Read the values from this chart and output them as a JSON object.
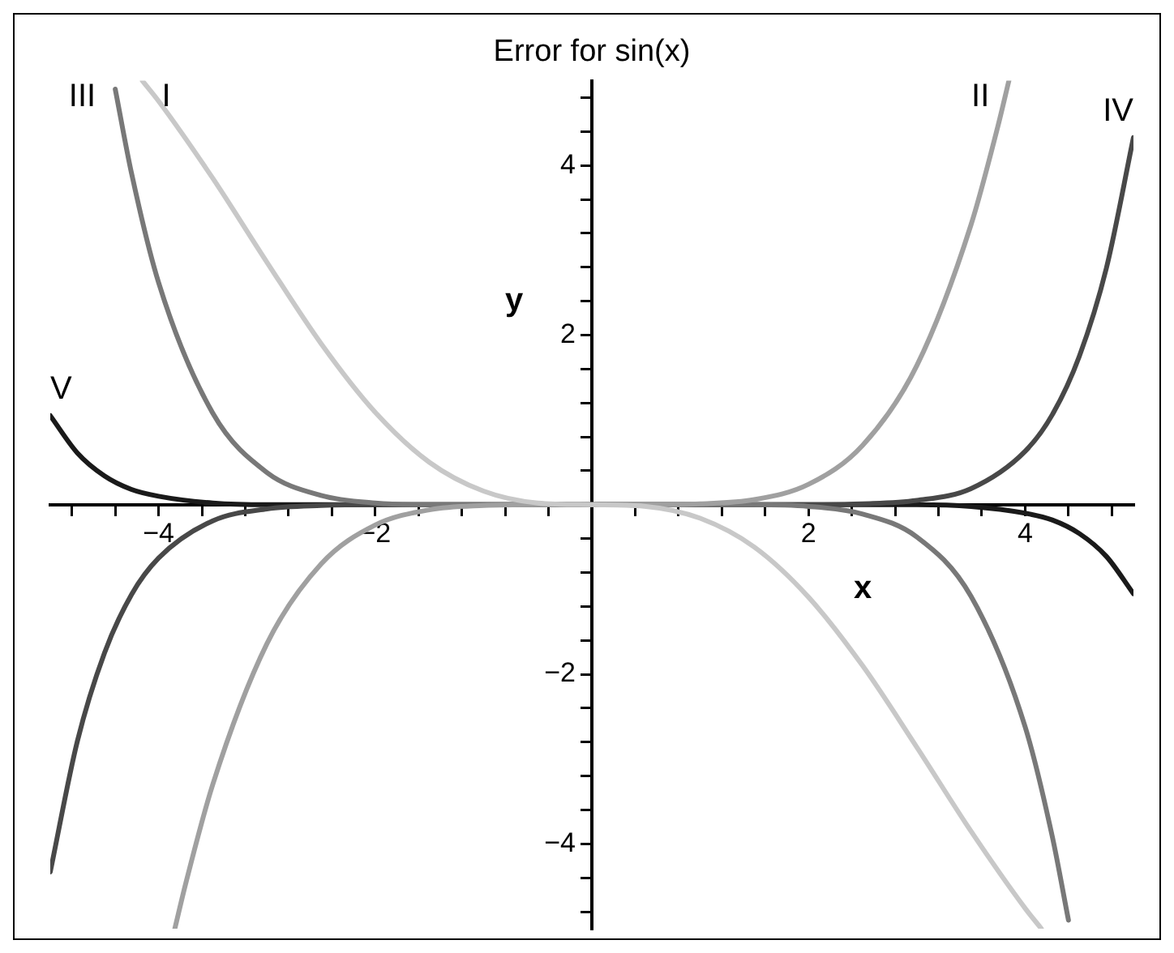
{
  "chart_data": {
    "type": "line",
    "title": "Error for sin(x)",
    "xlabel": "x",
    "ylabel": "y",
    "xlim": [
      -5,
      5
    ],
    "ylim": [
      -5,
      5
    ],
    "xticks": [
      {
        "value": -4.8,
        "label": null
      },
      {
        "value": -4.4,
        "label": null
      },
      {
        "value": -4,
        "label": "−4"
      },
      {
        "value": -3.6,
        "label": null
      },
      {
        "value": -3.2,
        "label": null
      },
      {
        "value": -2.8,
        "label": null
      },
      {
        "value": -2.4,
        "label": null
      },
      {
        "value": -2,
        "label": "−2"
      },
      {
        "value": -1.6,
        "label": null
      },
      {
        "value": -1.2,
        "label": null
      },
      {
        "value": -0.8,
        "label": null
      },
      {
        "value": -0.4,
        "label": null
      },
      {
        "value": 0.4,
        "label": null
      },
      {
        "value": 0.8,
        "label": null
      },
      {
        "value": 1.2,
        "label": null
      },
      {
        "value": 1.6,
        "label": null
      },
      2,
      {
        "value": 2.4,
        "label": null
      },
      {
        "value": 2.8,
        "label": null
      },
      {
        "value": 3.2,
        "label": null
      },
      {
        "value": 3.6,
        "label": null
      },
      4,
      {
        "value": 4.4,
        "label": null
      },
      {
        "value": 4.8,
        "label": null
      }
    ],
    "yticks": [
      {
        "value": -4.8,
        "label": null
      },
      {
        "value": -4.4,
        "label": null
      },
      {
        "value": -4,
        "label": "−4"
      },
      {
        "value": -3.6,
        "label": null
      },
      {
        "value": -3.2,
        "label": null
      },
      {
        "value": -2.8,
        "label": null
      },
      {
        "value": -2.4,
        "label": null
      },
      {
        "value": -2,
        "label": "−2"
      },
      {
        "value": -1.6,
        "label": null
      },
      {
        "value": -1.2,
        "label": null
      },
      {
        "value": -0.8,
        "label": null
      },
      {
        "value": -0.4,
        "label": null
      },
      {
        "value": 0.4,
        "label": null
      },
      {
        "value": 0.8,
        "label": null
      },
      {
        "value": 1.2,
        "label": null
      },
      {
        "value": 1.6,
        "label": null
      },
      2,
      {
        "value": 2.4,
        "label": null
      },
      {
        "value": 2.8,
        "label": null
      },
      {
        "value": 3.2,
        "label": null
      },
      {
        "value": 3.6,
        "label": null
      },
      4,
      {
        "value": 4.4,
        "label": null
      },
      {
        "value": 4.8,
        "label": null
      }
    ],
    "marker": "none",
    "series": [
      {
        "name": "I",
        "color": "#c8c8c8",
        "x": [
          -4.15,
          -4,
          -3.5,
          -3,
          -2.5,
          -2,
          -1.5,
          -1,
          -0.5,
          0,
          0.5,
          1,
          1.5,
          2,
          2.5,
          3,
          3.5,
          4,
          4.15
        ],
        "values": [
          5.0,
          4.76,
          3.85,
          2.86,
          1.9,
          1.09,
          0.5,
          0.16,
          0.02,
          0,
          -0.02,
          -0.16,
          -0.5,
          -1.09,
          -1.9,
          -2.86,
          -3.85,
          -4.76,
          -5.0
        ]
      },
      {
        "name": "II",
        "color": "#a0a0a0",
        "x": [
          -3.85,
          -3.75,
          -3.5,
          -3,
          -2.5,
          -2,
          -1.5,
          -1,
          -0.5,
          0,
          0.5,
          1,
          1.5,
          2,
          2.5,
          3,
          3.5,
          3.75,
          3.85
        ],
        "values": [
          -5.0,
          -4.47,
          -3.3,
          -1.64,
          -0.7,
          -0.24,
          -0.06,
          -0.01,
          0,
          0,
          0,
          0.01,
          0.06,
          0.24,
          0.7,
          1.64,
          3.3,
          4.47,
          5.0
        ]
      },
      {
        "name": "III",
        "color": "#787878",
        "x": [
          -4.4,
          -4.25,
          -4,
          -3.5,
          -3,
          -2.5,
          -2,
          -1.5,
          -1,
          0,
          1,
          1.5,
          2,
          2.5,
          3,
          3.5,
          4,
          4.25,
          4.4
        ],
        "values": [
          4.9,
          3.91,
          2.62,
          1.08,
          0.38,
          0.11,
          0.02,
          0,
          0,
          0,
          0,
          0,
          -0.02,
          -0.11,
          -0.38,
          -1.08,
          -2.62,
          -3.91,
          -4.9
        ]
      },
      {
        "name": "IV",
        "color": "#484848",
        "x": [
          -5,
          -4.75,
          -4.5,
          -4.25,
          -4,
          -3.5,
          -3,
          -2.5,
          -2,
          0,
          2,
          2.5,
          3,
          3.5,
          4,
          4.25,
          4.5,
          4.75,
          5
        ],
        "values": [
          -4.33,
          -2.79,
          -1.75,
          -1.06,
          -0.63,
          -0.19,
          -0.05,
          -0.01,
          0,
          0,
          0,
          0.01,
          0.05,
          0.19,
          0.63,
          1.06,
          1.75,
          2.79,
          4.33
        ]
      },
      {
        "name": "V",
        "color": "#1a1a1a",
        "x": [
          -5,
          -4.75,
          -4.5,
          -4.25,
          -4,
          -3.5,
          -3,
          -2.5,
          -2,
          0,
          2,
          2.5,
          3,
          3.5,
          4,
          4.25,
          4.5,
          4.75,
          5
        ],
        "values": [
          1.05,
          0.61,
          0.34,
          0.18,
          0.1,
          0.02,
          0,
          0,
          0,
          0,
          0,
          0,
          0,
          -0.02,
          -0.1,
          -0.18,
          -0.34,
          -0.61,
          -1.05
        ]
      }
    ]
  }
}
